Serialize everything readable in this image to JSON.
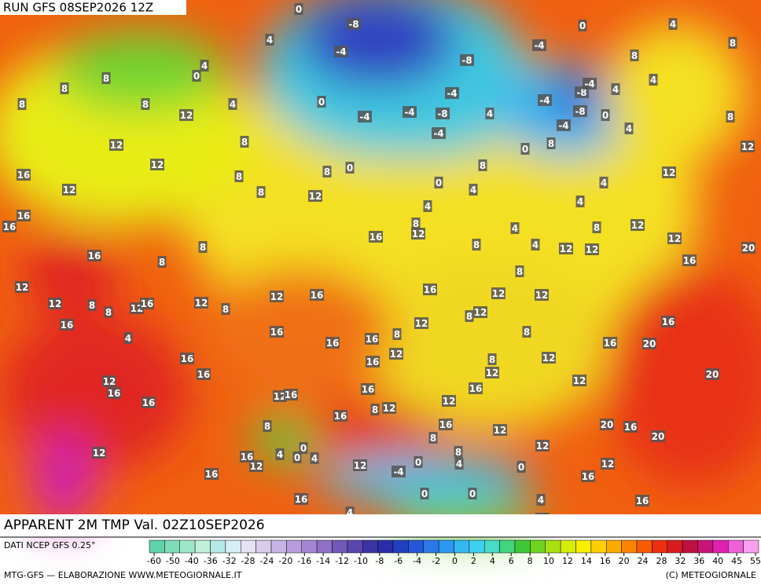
{
  "header": {
    "run": "RUN GFS 08SEP2026 12Z"
  },
  "map": {
    "title": "APPARENT 2M TMP Val. 02Z10SEP2026",
    "labels": [
      0,
      -8,
      0,
      4,
      -4,
      -4,
      -8,
      0,
      4,
      4,
      8,
      8,
      4,
      8,
      8,
      8,
      8,
      12,
      4,
      0,
      -4,
      -4,
      -4,
      -8,
      4,
      -4,
      -8,
      -4,
      4,
      -8,
      -4,
      0,
      4,
      8,
      -4,
      12,
      8,
      12,
      16,
      12,
      8,
      8,
      0,
      12,
      8,
      0,
      8,
      12,
      0,
      4,
      12,
      8,
      4,
      4,
      4,
      16,
      16,
      16,
      12,
      8,
      4,
      4,
      8,
      12,
      12,
      20,
      16,
      8,
      8,
      8,
      12,
      12,
      16,
      8,
      12,
      12,
      8,
      8,
      12,
      16,
      12,
      8,
      12,
      16,
      16,
      12,
      12,
      16,
      16,
      12,
      8,
      12,
      8,
      16,
      4,
      16,
      16,
      8,
      16,
      20,
      16,
      16,
      12,
      8,
      12,
      12,
      16,
      16,
      12,
      12,
      20,
      16,
      16,
      16,
      12,
      16,
      16,
      8,
      12,
      12,
      8,
      16,
      20,
      16,
      12,
      8,
      20,
      12,
      0,
      12,
      8,
      4,
      16,
      12,
      4,
      0,
      4,
      0,
      12,
      -4,
      0,
      12,
      16,
      16,
      0,
      0,
      16,
      4,
      16,
      4,
      4,
      12,
      20,
      8,
      16
    ]
  },
  "footer": {
    "source": "DATI NCEP GFS 0.25°",
    "credit": "MTG-GFS — ELABORAZIONE WWW.METEOGIORNALE.IT",
    "copyright": "(C) METEOGIORNALE"
  },
  "colorbar": {
    "ticks": [
      -60,
      -50,
      -40,
      -36,
      -32,
      -28,
      -24,
      -20,
      -16,
      -14,
      -12,
      -10,
      -8,
      -6,
      -4,
      -2,
      0,
      2,
      4,
      6,
      8,
      10,
      12,
      14,
      16,
      20,
      24,
      28,
      32,
      36,
      40,
      45,
      55
    ],
    "colors": [
      "#5fd3a9",
      "#7fdcb8",
      "#a0e6c8",
      "#c1efd9",
      "#b6e8e8",
      "#d6eef4",
      "#e6e2f2",
      "#d8ccec",
      "#c8b4e4",
      "#b89cdc",
      "#a684d2",
      "#9070c6",
      "#7258b8",
      "#5a46ac",
      "#3c34a4",
      "#2a2ca8",
      "#2040c0",
      "#2458d8",
      "#2c78e8",
      "#2c98f0",
      "#34b8f4",
      "#40d0f0",
      "#46dcc8",
      "#44d47c",
      "#40c838",
      "#70d420",
      "#a8e010",
      "#d8ec08",
      "#f8f000",
      "#fcd000",
      "#fcac00",
      "#fc8400",
      "#f85c00",
      "#ec3010",
      "#d81c20",
      "#c01040",
      "#c81478",
      "#e020b0",
      "#f060d8",
      "#f8a0f0"
    ]
  }
}
